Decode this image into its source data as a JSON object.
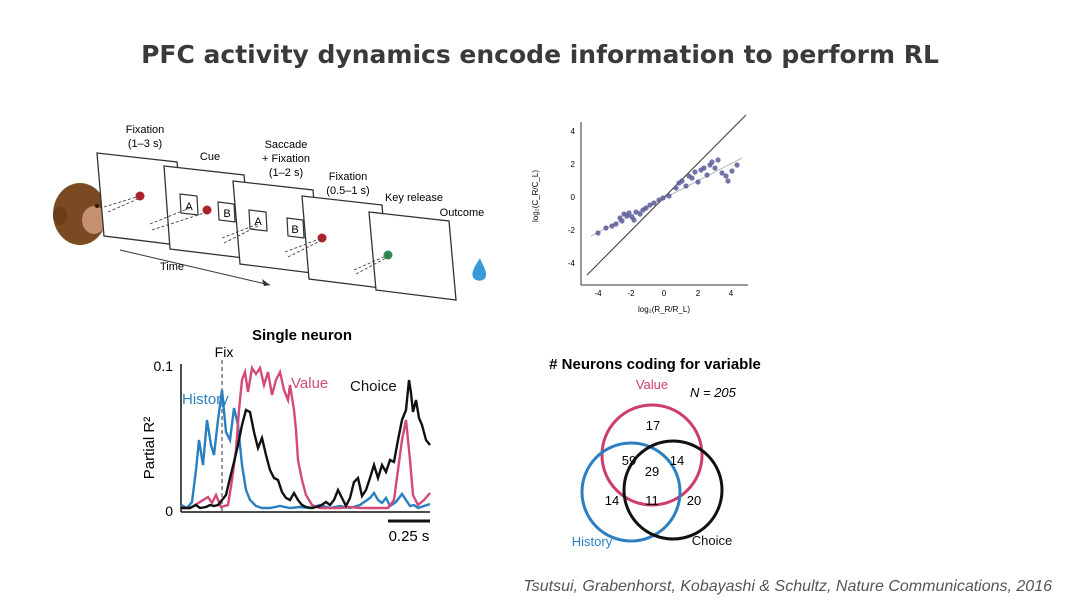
{
  "slide": {
    "title": "PFC activity dynamics encode information to perform RL",
    "citation": "Tsutsui, Grabenhorst, Kobayashi & Schultz, Nature Communications, 2016"
  },
  "task": {
    "labels": {
      "fixation": "Fixation (1–3 s)",
      "cue": "Cue",
      "saccade": "Saccade + Fixation (1–2 s)",
      "fixation2": "Fixation (0.5–1 s)",
      "key_release": "Key release",
      "outcome": "Outcome",
      "time": "Time",
      "option_a": "A",
      "option_b": "B"
    },
    "icons": [
      "monkey-head-icon",
      "water-drop-icon"
    ],
    "colors": {
      "fixation_dot": "#b0202a",
      "outcome_dot": "#2e8b57",
      "drop": "#3a9ad9"
    }
  },
  "scatter": {
    "x_ticks": [
      "-4",
      "-2",
      "0",
      "2",
      "4"
    ],
    "y_ticks": [
      "4",
      "2",
      "0",
      "-2",
      "-4"
    ],
    "xlabel": "log₂(R_R/R_L)",
    "ylabel": "log₂(C_R/C_L)",
    "color": "#5a5a99"
  },
  "neuron": {
    "title": "Single neuron",
    "ylabel": "Partial R²",
    "y_ticks": [
      "0.1",
      "0"
    ],
    "fix_label": "Fix",
    "scalebar": "0.25 s",
    "series": [
      {
        "name": "History",
        "color": "#2a7fc0"
      },
      {
        "name": "Value",
        "color": "#d24a7a"
      },
      {
        "name": "Choice",
        "color": "#111111"
      }
    ]
  },
  "venn": {
    "title": "# Neurons coding for variable",
    "n_label": "N = 205",
    "sets": [
      {
        "name": "Value",
        "color": "#cc3d6b"
      },
      {
        "name": "History",
        "color": "#2e7fc2"
      },
      {
        "name": "Choice",
        "color": "#111111"
      }
    ],
    "counts": {
      "value_only": "17",
      "history_only": "14",
      "choice_only": "20",
      "value_history": "59",
      "value_choice": "14",
      "history_choice": "11",
      "all": "29"
    }
  }
}
